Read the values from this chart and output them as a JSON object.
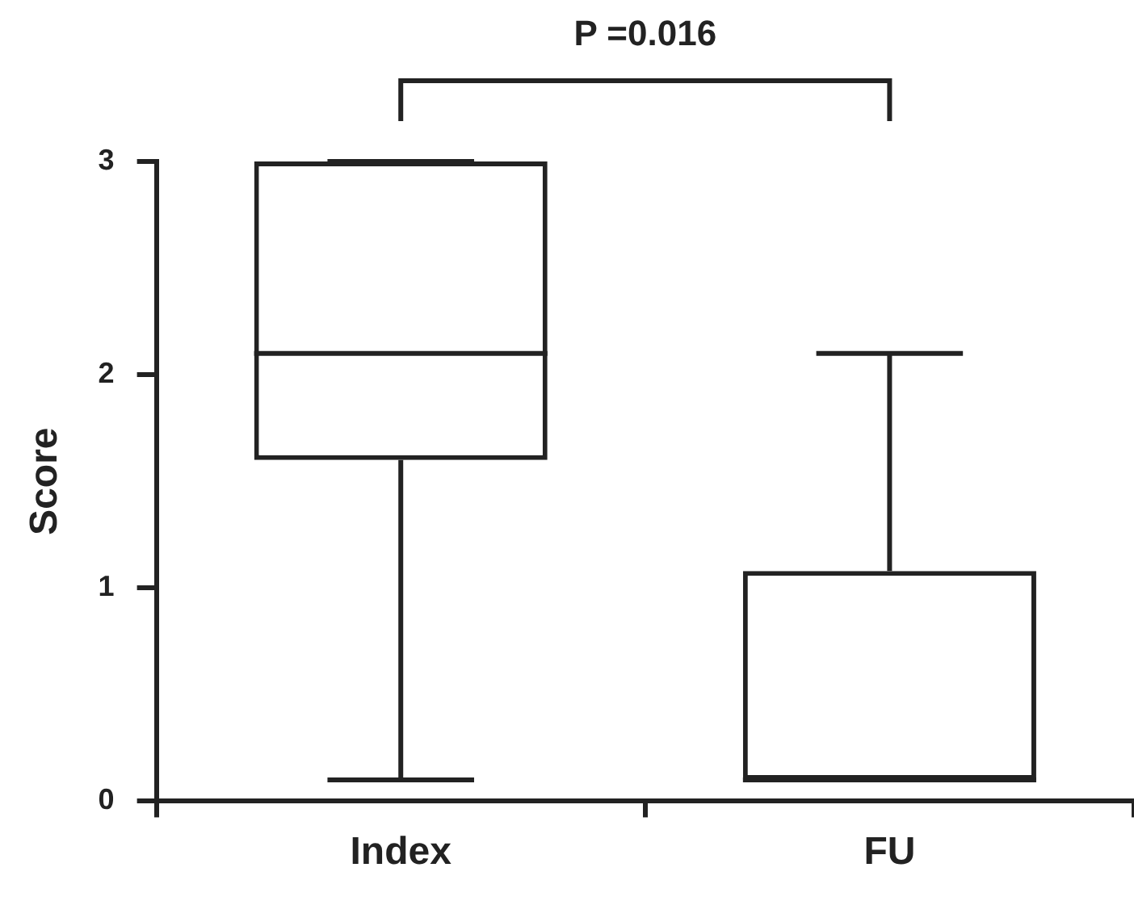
{
  "chart_data": {
    "type": "box",
    "ylabel": "Score",
    "categories": [
      "Index",
      "FU"
    ],
    "boxes": [
      {
        "low": 0.1,
        "q1": 1.6,
        "median": 2.1,
        "q3": 3.0,
        "high": 3.0
      },
      {
        "low": 0.1,
        "q1": 0.1,
        "median": 0.1,
        "q3": 1.08,
        "high": 2.1
      }
    ],
    "ylim": [
      0,
      3
    ],
    "yticks": [
      0,
      1,
      2,
      3
    ],
    "annotations": [
      "P =0.016"
    ]
  }
}
